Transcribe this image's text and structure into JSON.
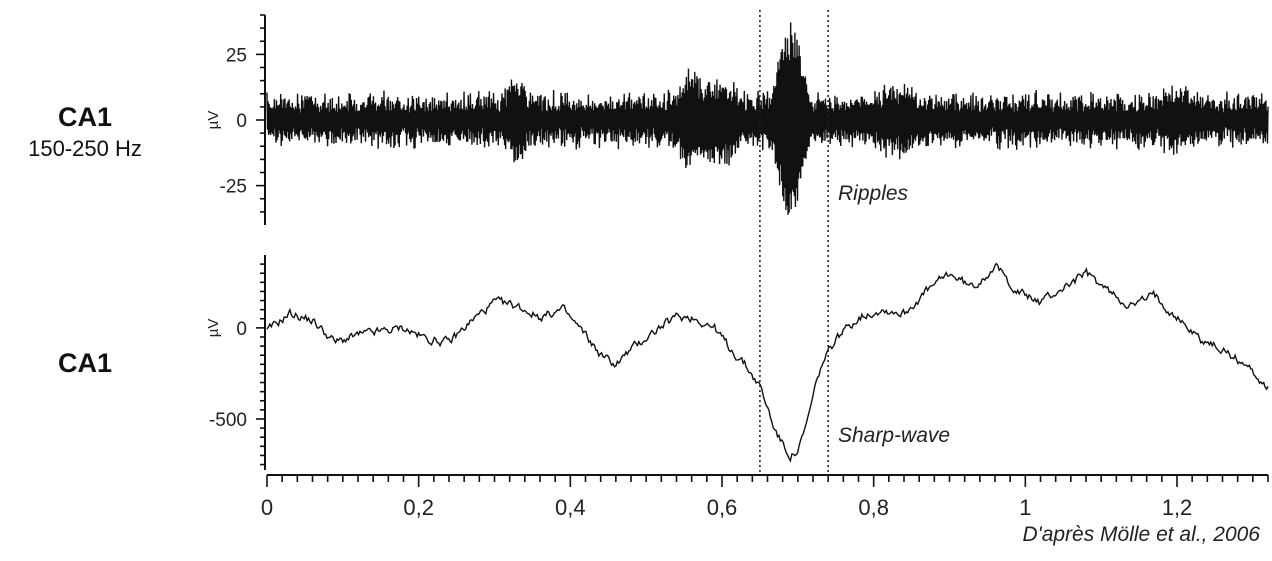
{
  "labels": {
    "top_title": "CA1",
    "top_subtitle": "150-250 Hz",
    "bottom_title": "CA1",
    "citation": "D'après Mölle et al., 2006"
  },
  "chart_data": [
    {
      "type": "line",
      "panel": "top",
      "ylabel": "µV",
      "ylim": [
        -40,
        40
      ],
      "yticks": [
        25,
        0,
        -25
      ],
      "annotation": "Ripples",
      "x_extent": [
        0,
        1.32
      ],
      "series_note_values_uv": {
        "baseline_amplitude": 8,
        "ripple_peak_amplitude": 38,
        "ripple_center_s": 0.69
      }
    },
    {
      "type": "line",
      "panel": "bottom",
      "ylabel": "µV",
      "ylim": [
        -780,
        400
      ],
      "yticks": [
        0,
        -500
      ],
      "annotation": "Sharp-wave",
      "x_extent": [
        0,
        1.32
      ],
      "x": [
        0,
        0.03,
        0.06,
        0.09,
        0.12,
        0.15,
        0.18,
        0.21,
        0.24,
        0.27,
        0.3,
        0.33,
        0.36,
        0.39,
        0.42,
        0.44,
        0.46,
        0.48,
        0.51,
        0.54,
        0.56,
        0.59,
        0.61,
        0.63,
        0.65,
        0.66,
        0.67,
        0.68,
        0.69,
        0.7,
        0.71,
        0.72,
        0.73,
        0.75,
        0.78,
        0.81,
        0.84,
        0.87,
        0.9,
        0.93,
        0.96,
        0.99,
        1.02,
        1.05,
        1.08,
        1.11,
        1.14,
        1.17,
        1.2,
        1.23,
        1.26,
        1.29,
        1.32
      ],
      "values": [
        -20,
        80,
        40,
        -80,
        -40,
        -20,
        0,
        -60,
        -80,
        40,
        140,
        120,
        60,
        100,
        -40,
        -150,
        -200,
        -120,
        -20,
        60,
        60,
        0,
        -110,
        -200,
        -320,
        -440,
        -560,
        -640,
        -700,
        -680,
        -560,
        -380,
        -220,
        -60,
        60,
        100,
        80,
        200,
        300,
        220,
        340,
        200,
        140,
        220,
        300,
        200,
        120,
        180,
        60,
        -60,
        -120,
        -200,
        -330
      ]
    }
  ],
  "xaxis": {
    "ticks": [
      "0",
      "0,2",
      "0,4",
      "0,6",
      "0,8",
      "1",
      "1,2"
    ],
    "tick_values": [
      0,
      0.2,
      0.4,
      0.6,
      0.8,
      1.0,
      1.2
    ],
    "xlim": [
      0,
      1.32
    ]
  },
  "markers": {
    "dotted_lines_x": [
      0.65,
      0.74
    ]
  }
}
